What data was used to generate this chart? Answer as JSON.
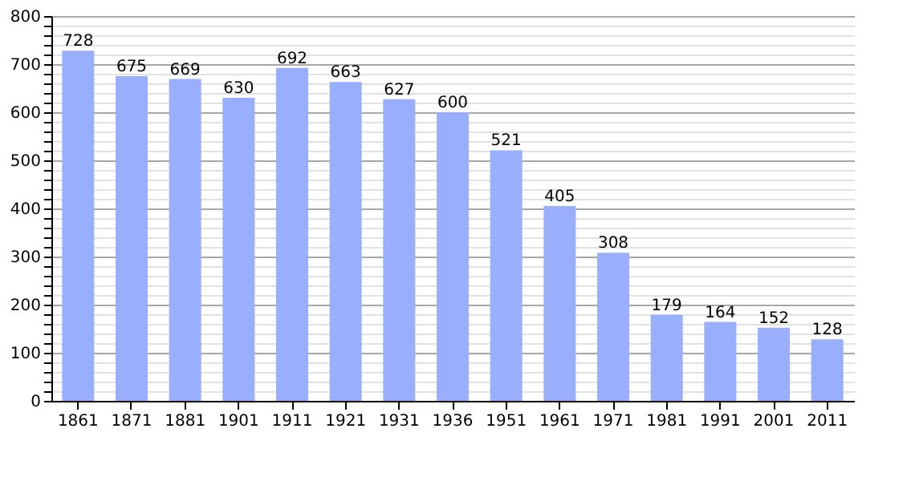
{
  "chart_data": {
    "type": "bar",
    "categories": [
      "1861",
      "1871",
      "1881",
      "1901",
      "1911",
      "1921",
      "1931",
      "1936",
      "1951",
      "1961",
      "1971",
      "1981",
      "1991",
      "2001",
      "2011"
    ],
    "values": [
      728,
      675,
      669,
      630,
      692,
      663,
      627,
      600,
      521,
      405,
      308,
      179,
      164,
      152,
      128
    ],
    "color": "#9aaefe",
    "ylim": [
      0,
      800
    ],
    "yticks": [
      0,
      {
        "value": 20,
        "label": null
      },
      {
        "value": 40,
        "label": null
      },
      {
        "value": 60,
        "label": null
      },
      {
        "value": 80,
        "label": null
      },
      100,
      {
        "value": 120,
        "label": null
      },
      {
        "value": 140,
        "label": null
      },
      {
        "value": 160,
        "label": null
      },
      {
        "value": 180,
        "label": null
      },
      200,
      {
        "value": 220,
        "label": null
      },
      {
        "value": 240,
        "label": null
      },
      {
        "value": 260,
        "label": null
      },
      {
        "value": 280,
        "label": null
      },
      300,
      {
        "value": 320,
        "label": null
      },
      {
        "value": 340,
        "label": null
      },
      {
        "value": 360,
        "label": null
      },
      {
        "value": 380,
        "label": null
      },
      400,
      {
        "value": 420,
        "label": null
      },
      {
        "value": 440,
        "label": null
      },
      {
        "value": 460,
        "label": null
      },
      {
        "value": 480,
        "label": null
      },
      500,
      {
        "value": 520,
        "label": null
      },
      {
        "value": 540,
        "label": null
      },
      {
        "value": 560,
        "label": null
      },
      {
        "value": 580,
        "label": null
      },
      600,
      {
        "value": 620,
        "label": null
      },
      {
        "value": 640,
        "label": null
      },
      {
        "value": 660,
        "label": null
      },
      {
        "value": 680,
        "label": null
      },
      700,
      {
        "value": 720,
        "label": null
      },
      {
        "value": 740,
        "label": null
      },
      {
        "value": 760,
        "label": null
      },
      {
        "value": 780,
        "label": null
      },
      800
    ],
    "grid": "y",
    "data_labels": true
  }
}
